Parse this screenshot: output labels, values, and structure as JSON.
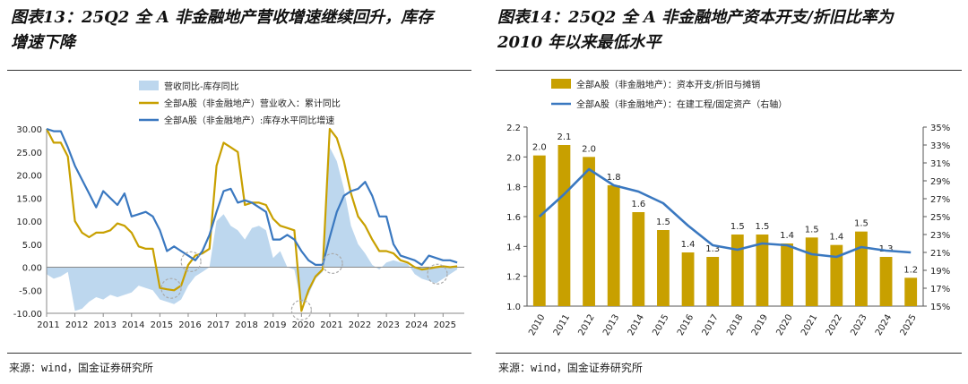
{
  "left": {
    "title": "图表13：25Q2 全 A 非金融地产营收增速继续回升，库存增速下降",
    "title_line1": "图表13：25Q2 全 A 非金融地产营收增速继续回升，库存",
    "title_line2": "增速下降",
    "source": "来源：wind，国金证券研究所"
  },
  "right": {
    "title": "图表14：25Q2 全 A 非金融地产资本开支/折旧比率为 2010 年以来最低水平",
    "title_line1": "图表14：25Q2 全 A 非金融地产资本开支/折旧比率为",
    "title_line2": "2010 年以来最低水平",
    "source": "来源：wind，国金证券研究所"
  },
  "colors": {
    "area": "#bdd7ee",
    "gold": "#c8a000",
    "blue": "#3a78c0",
    "circle": "#aaaaaa"
  },
  "chart_data": [
    {
      "type": "line",
      "title": "图表13",
      "ylim": [
        -10,
        30
      ],
      "yticks": [
        "30.00",
        "25.00",
        "20.00",
        "15.00",
        "10.00",
        "5.00",
        "0.00",
        "-5.00",
        "-10.00"
      ],
      "xlim": [
        2011,
        2025.75
      ],
      "xticks": [
        "2011",
        "2012",
        "2013",
        "2014",
        "2015",
        "2016",
        "2017",
        "2018",
        "2019",
        "2020",
        "2021",
        "2022",
        "2023",
        "2024",
        "2025"
      ],
      "legend": [
        "营收同比-库存同比",
        "全部A股（非金融地产）营业收入：累计同比",
        "全部A股（非金融地产）:库存水平同比增速"
      ],
      "series": [
        {
          "name": "营收同比-库存同比",
          "kind": "area",
          "x": [
            2011,
            2011.25,
            2011.5,
            2011.75,
            2012,
            2012.25,
            2012.5,
            2012.75,
            2013,
            2013.25,
            2013.5,
            2013.75,
            2014,
            2014.25,
            2014.5,
            2014.75,
            2015,
            2015.25,
            2015.5,
            2015.75,
            2016,
            2016.25,
            2016.5,
            2016.75,
            2017,
            2017.25,
            2017.5,
            2017.75,
            2018,
            2018.25,
            2018.5,
            2018.75,
            2019,
            2019.25,
            2019.5,
            2019.75,
            2020,
            2020.25,
            2020.5,
            2020.75,
            2021,
            2021.25,
            2021.5,
            2021.75,
            2022,
            2022.25,
            2022.5,
            2022.75,
            2023,
            2023.25,
            2023.5,
            2023.75,
            2024,
            2024.25,
            2024.5,
            2024.75,
            2025,
            2025.25,
            2025.5
          ],
          "values": [
            -1.5,
            -2.5,
            -2,
            -1,
            -9.5,
            -9,
            -7.5,
            -6.5,
            -7,
            -6,
            -6.5,
            -6,
            -5.5,
            -4,
            -4.5,
            -5,
            -7,
            -7.5,
            -8,
            -7,
            -4,
            -2,
            -1,
            0,
            10,
            11.5,
            9,
            8,
            6,
            8.5,
            9,
            8,
            2,
            3.5,
            0,
            -0.5,
            -8,
            -6,
            -2.5,
            -1,
            26,
            23,
            17,
            9,
            5,
            3,
            0.5,
            -0.5,
            1,
            1.5,
            1,
            0.8,
            -1.5,
            -2.5,
            -3,
            -3.5,
            -2.5,
            -1.5,
            -0.5
          ]
        },
        {
          "name": "全部A股（非金融地产）营业收入：累计同比",
          "kind": "line",
          "x": [
            2011,
            2011.25,
            2011.5,
            2011.75,
            2012,
            2012.25,
            2012.5,
            2012.75,
            2013,
            2013.25,
            2013.5,
            2013.75,
            2014,
            2014.25,
            2014.5,
            2014.75,
            2015,
            2015.25,
            2015.5,
            2015.75,
            2016,
            2016.25,
            2016.5,
            2016.75,
            2017,
            2017.25,
            2017.5,
            2017.75,
            2018,
            2018.25,
            2018.5,
            2018.75,
            2019,
            2019.25,
            2019.5,
            2019.75,
            2020,
            2020.25,
            2020.5,
            2020.75,
            2021,
            2021.25,
            2021.5,
            2021.75,
            2022,
            2022.25,
            2022.5,
            2022.75,
            2023,
            2023.25,
            2023.5,
            2023.75,
            2024,
            2024.25,
            2024.5,
            2024.75,
            2025,
            2025.25,
            2025.5
          ],
          "values": [
            30,
            27,
            27,
            24,
            10,
            7.5,
            6.5,
            7.5,
            7.5,
            8,
            9.5,
            9,
            7.5,
            4.5,
            4,
            4,
            -4.5,
            -4.8,
            -5,
            -4,
            0.5,
            2.5,
            3,
            4,
            22,
            27,
            26,
            25,
            13.5,
            14,
            14,
            13.5,
            10.5,
            9,
            8.5,
            8,
            -9.5,
            -5,
            -2,
            -0.5,
            30,
            28,
            23,
            16,
            11,
            9,
            6,
            3.5,
            3.5,
            3,
            1.5,
            1,
            0,
            -0.5,
            -0.3,
            0,
            0.2,
            0,
            0.2
          ]
        },
        {
          "name": "全部A股（非金融地产）:库存水平同比增速",
          "kind": "line",
          "x": [
            2011,
            2011.25,
            2011.5,
            2011.75,
            2012,
            2012.25,
            2012.5,
            2012.75,
            2013,
            2013.25,
            2013.5,
            2013.75,
            2014,
            2014.25,
            2014.5,
            2014.75,
            2015,
            2015.25,
            2015.5,
            2015.75,
            2016,
            2016.25,
            2016.5,
            2016.75,
            2017,
            2017.25,
            2017.5,
            2017.75,
            2018,
            2018.25,
            2018.5,
            2018.75,
            2019,
            2019.25,
            2019.5,
            2019.75,
            2020,
            2020.25,
            2020.5,
            2020.75,
            2021,
            2021.25,
            2021.5,
            2021.75,
            2022,
            2022.25,
            2022.5,
            2022.75,
            2023,
            2023.25,
            2023.5,
            2023.75,
            2024,
            2024.25,
            2024.5,
            2024.75,
            2025,
            2025.25,
            2025.5
          ],
          "values": [
            30,
            29.5,
            29.5,
            26,
            22,
            19,
            16,
            13,
            16.5,
            15,
            13.5,
            16,
            11,
            11.5,
            12,
            11,
            8,
            3.5,
            4.5,
            3.5,
            2.5,
            1.5,
            3.5,
            7,
            12,
            16.5,
            17,
            14,
            14.5,
            14,
            13,
            12,
            6,
            6,
            7,
            6,
            3.5,
            1.5,
            0.5,
            0.5,
            6.5,
            12,
            15.5,
            16.5,
            17,
            18.5,
            15.5,
            11,
            11,
            5,
            2.5,
            2,
            1.5,
            0.5,
            2.5,
            2,
            1.5,
            1.5,
            1
          ]
        }
      ]
    },
    {
      "type": "bar",
      "title": "图表14",
      "categories": [
        "2010",
        "2011",
        "2012",
        "2013",
        "2014",
        "2015",
        "2016",
        "2017",
        "2018",
        "2019",
        "2020",
        "2021",
        "2022",
        "2023",
        "2024",
        "2025"
      ],
      "ylim": [
        1.0,
        2.2
      ],
      "yticks": [
        "2.2",
        "2.0",
        "1.8",
        "1.6",
        "1.4",
        "1.2",
        "1.0"
      ],
      "y2lim": [
        15,
        35
      ],
      "y2ticks": [
        "35%",
        "33%",
        "31%",
        "29%",
        "27%",
        "25%",
        "23%",
        "21%",
        "19%",
        "17%",
        "15%"
      ],
      "legend": [
        "全部A股（非金融地产）：资本开支/折旧与摊销",
        "全部A股（非金融地产）：在建工程/固定资产（右轴）"
      ],
      "series": [
        {
          "name": "全部A股（非金融地产）：资本开支/折旧与摊销",
          "kind": "bar",
          "axis": "left",
          "values": [
            2.01,
            2.08,
            2.0,
            1.81,
            1.63,
            1.51,
            1.36,
            1.33,
            1.48,
            1.48,
            1.42,
            1.46,
            1.41,
            1.5,
            1.33,
            1.19
          ],
          "labels": [
            "2.0",
            "2.1",
            "2.0",
            "1.8",
            "1.6",
            "1.5",
            "1.4",
            "1.3",
            "1.5",
            "1.5",
            "1.4",
            "1.5",
            "1.4",
            "1.5",
            "1.3",
            "1.2"
          ]
        },
        {
          "name": "全部A股（非金融地产）：在建工程/固定资产（右轴）",
          "kind": "line",
          "axis": "right",
          "values": [
            25.0,
            27.5,
            30.3,
            28.5,
            27.8,
            26.5,
            24.0,
            21.8,
            21.3,
            22.0,
            21.8,
            20.8,
            20.5,
            21.6,
            21.2,
            21.0
          ]
        }
      ]
    }
  ]
}
